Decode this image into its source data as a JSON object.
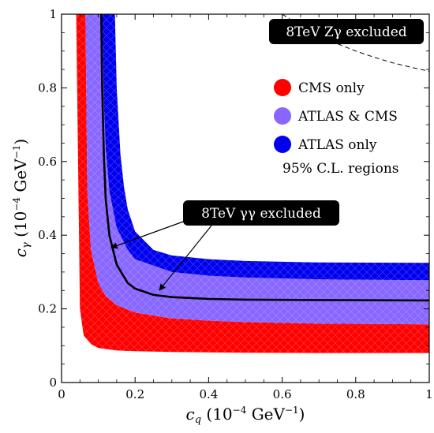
{
  "chart_data": {
    "type": "area",
    "title": "",
    "xlabel": "c_q (10^-4 GeV^-1)",
    "ylabel": "c_γ (10^-4 GeV^-1)",
    "xlim": [
      0,
      1
    ],
    "ylim": [
      0,
      1
    ],
    "x_ticks": [
      "0",
      "0.2",
      "0.4",
      "0.6",
      "0.8",
      "1"
    ],
    "y_ticks": [
      "0",
      "0.2",
      "0.4",
      "0.6",
      "0.8",
      "1"
    ],
    "grid": false,
    "legend_position": "top-right",
    "legend_note": "95% C.L. regions",
    "series": [
      {
        "name": "CMS only",
        "color": "#ff0000",
        "lower": {
          "x": [
            0.04,
            0.05,
            0.06,
            0.08,
            0.1,
            0.15,
            0.2,
            0.3,
            0.4,
            0.5,
            0.7,
            1.0
          ],
          "y": [
            1.0,
            0.2,
            0.128,
            0.104,
            0.094,
            0.087,
            0.085,
            0.083,
            0.082,
            0.081,
            0.08,
            0.08
          ]
        },
        "upper": {
          "x": [
            0.065,
            0.07,
            0.08,
            0.1,
            0.12,
            0.15,
            0.2,
            0.3,
            0.4,
            0.5,
            0.7,
            1.0
          ],
          "y": [
            1.0,
            0.52,
            0.36,
            0.27,
            0.235,
            0.21,
            0.19,
            0.174,
            0.168,
            0.164,
            0.16,
            0.158
          ]
        }
      },
      {
        "name": "ATLAS & CMS",
        "color": "#8866ff",
        "lower": {
          "x": [
            0.065,
            0.07,
            0.08,
            0.1,
            0.12,
            0.15,
            0.2,
            0.3,
            0.4,
            0.5,
            0.7,
            1.0
          ],
          "y": [
            1.0,
            0.52,
            0.36,
            0.27,
            0.235,
            0.21,
            0.19,
            0.174,
            0.168,
            0.164,
            0.16,
            0.158
          ]
        },
        "upper": {
          "x": [
            0.11,
            0.115,
            0.12,
            0.13,
            0.15,
            0.18,
            0.2,
            0.3,
            0.4,
            0.5,
            0.7,
            1.0
          ],
          "y": [
            1.0,
            0.76,
            0.64,
            0.52,
            0.42,
            0.36,
            0.335,
            0.3,
            0.29,
            0.285,
            0.28,
            0.278
          ]
        }
      },
      {
        "name": "ATLAS only",
        "color": "#0000ee",
        "lower": {
          "x": [
            0.11,
            0.115,
            0.12,
            0.13,
            0.15,
            0.18,
            0.2,
            0.3,
            0.4,
            0.5,
            0.7,
            1.0
          ],
          "y": [
            1.0,
            0.76,
            0.64,
            0.52,
            0.42,
            0.36,
            0.335,
            0.3,
            0.29,
            0.285,
            0.28,
            0.278
          ]
        },
        "upper": {
          "x": [
            0.145,
            0.15,
            0.16,
            0.17,
            0.18,
            0.2,
            0.25,
            0.3,
            0.4,
            0.5,
            0.7,
            1.0
          ],
          "y": [
            1.0,
            0.8,
            0.62,
            0.53,
            0.47,
            0.41,
            0.36,
            0.345,
            0.335,
            0.33,
            0.326,
            0.325
          ]
        }
      }
    ],
    "curves": [
      {
        "label": "8TeV γγ excluded",
        "style": "solid",
        "color": "#000000",
        "x": [
          0.108,
          0.11,
          0.115,
          0.12,
          0.13,
          0.15,
          0.18,
          0.2,
          0.25,
          0.3,
          0.4,
          0.5,
          0.7,
          1.0
        ],
        "y": [
          1.0,
          0.82,
          0.62,
          0.5,
          0.4,
          0.32,
          0.27,
          0.255,
          0.238,
          0.232,
          0.227,
          0.225,
          0.224,
          0.223
        ]
      },
      {
        "label": "8TeV Zγ excluded",
        "style": "dashed",
        "color": "#000000",
        "x": [
          0.6,
          0.65,
          0.7,
          0.75,
          0.8,
          0.85,
          0.9,
          0.95,
          1.0
        ],
        "y": [
          1.0,
          0.968,
          0.942,
          0.92,
          0.9,
          0.883,
          0.868,
          0.856,
          0.845
        ]
      }
    ]
  },
  "legend": {
    "items": [
      {
        "label": "CMS only",
        "color": "#ff0000"
      },
      {
        "label": "ATLAS & CMS",
        "color": "#8866ff"
      },
      {
        "label": "ATLAS only",
        "color": "#0000ee"
      }
    ],
    "note": "95% C.L. regions"
  },
  "annotations": {
    "gg_label": "8TeV γγ excluded",
    "zg_label": "8TeV Zγ excluded"
  }
}
